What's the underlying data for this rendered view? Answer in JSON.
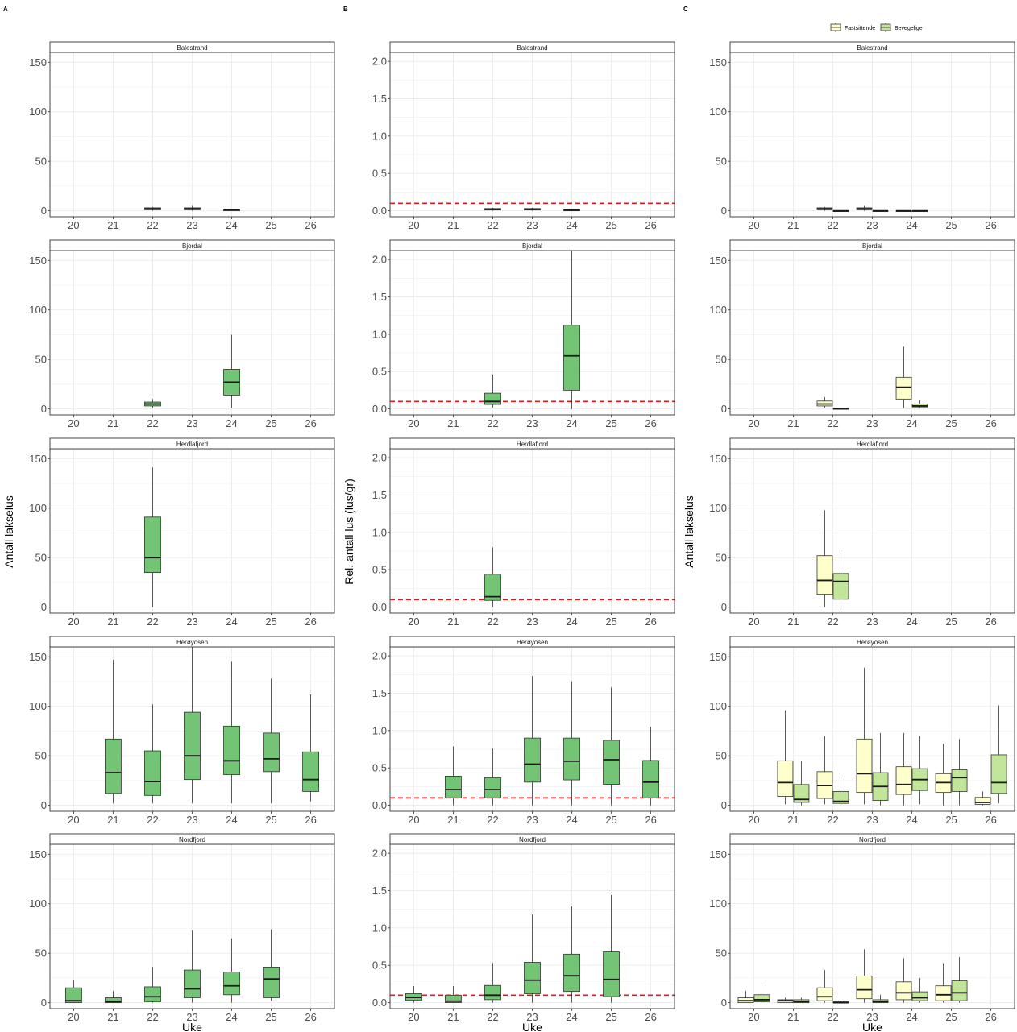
{
  "colors": {
    "green": "#74c476",
    "fastsittende": "#ffffcc",
    "bevegelige": "#c2e699",
    "threshold": "#e31a1c",
    "grid": "#ebebeb",
    "border": "#333333"
  },
  "chart_data": {
    "type": "boxplot",
    "weeks": [
      "20",
      "21",
      "22",
      "23",
      "24",
      "25",
      "26"
    ],
    "sites": [
      "Balestrand",
      "Bjordal",
      "Herdlafjord",
      "Herøyosen",
      "Nordfjord"
    ],
    "xlabel": "Uke",
    "columns": [
      {
        "letter": "A",
        "ylabel": "Antall lakselus",
        "ylim": [
          -6,
          160
        ],
        "yticks": [
          0,
          50,
          100,
          150
        ],
        "threshold": null,
        "series": [
          {
            "name": "",
            "color": "green"
          }
        ],
        "panels": {
          "Balestrand": {
            "22": [
              [
                0,
                1,
                2,
                3,
                4
              ]
            ],
            "23": [
              [
                0,
                1,
                2,
                3,
                5
              ]
            ],
            "24": [
              [
                0,
                0,
                1,
                1,
                1
              ]
            ]
          },
          "Bjordal": {
            "22": [
              [
                1,
                3,
                5,
                7,
                10
              ]
            ],
            "24": [
              [
                1,
                14,
                27,
                40,
                75
              ]
            ]
          },
          "Herdlafjord": {
            "22": [
              [
                0,
                35,
                50,
                91,
                141
              ]
            ]
          },
          "Herøyosen": {
            "21": [
              [
                2,
                12,
                33,
                67,
                147
              ]
            ],
            "22": [
              [
                2,
                10,
                24,
                55,
                102
              ]
            ],
            "23": [
              [
                2,
                26,
                50,
                94,
                160
              ]
            ],
            "24": [
              [
                2,
                31,
                45,
                80,
                145
              ]
            ],
            "25": [
              [
                2,
                34,
                47,
                73,
                128
              ]
            ],
            "26": [
              [
                4,
                14,
                26,
                54,
                112
              ]
            ]
          },
          "Nordfjord": {
            "20": [
              [
                0,
                0,
                2,
                15,
                23
              ]
            ],
            "21": [
              [
                0,
                0,
                1,
                5,
                12
              ]
            ],
            "22": [
              [
                0,
                1,
                6,
                16,
                36
              ]
            ],
            "23": [
              [
                0,
                5,
                14,
                33,
                73
              ]
            ],
            "24": [
              [
                0,
                8,
                17,
                31,
                65
              ]
            ],
            "25": [
              [
                2,
                5,
                24,
                36,
                74
              ]
            ]
          }
        }
      },
      {
        "letter": "B",
        "ylabel": "Rel. antall lus (lus/gr)",
        "ylim": [
          -0.08,
          2.12
        ],
        "yticks": [
          0.0,
          0.5,
          1.0,
          1.5,
          2.0
        ],
        "ytick_labels": [
          "0.0",
          "0.5",
          "1.0",
          "1.5",
          "2.0"
        ],
        "threshold": 0.1,
        "series": [
          {
            "name": "",
            "color": "green"
          }
        ],
        "panels": {
          "Balestrand": {
            "22": [
              [
                0,
                0.01,
                0.02,
                0.03,
                0.04
              ]
            ],
            "23": [
              [
                0,
                0.01,
                0.02,
                0.03,
                0.04
              ]
            ],
            "24": [
              [
                0,
                0.005,
                0.01,
                0.01,
                0.01
              ]
            ]
          },
          "Bjordal": {
            "22": [
              [
                0.02,
                0.06,
                0.1,
                0.21,
                0.46
              ]
            ],
            "24": [
              [
                0,
                0.25,
                0.71,
                1.12,
                2.12
              ]
            ]
          },
          "Herdlafjord": {
            "22": [
              [
                0,
                0.09,
                0.14,
                0.44,
                0.8
              ]
            ]
          },
          "Herøyosen": {
            "21": [
              [
                0,
                0.1,
                0.21,
                0.39,
                0.79
              ]
            ],
            "22": [
              [
                0,
                0.1,
                0.21,
                0.37,
                0.76
              ]
            ],
            "23": [
              [
                0,
                0.31,
                0.55,
                0.9,
                1.73
              ]
            ],
            "24": [
              [
                0,
                0.34,
                0.59,
                0.9,
                1.66
              ]
            ],
            "25": [
              [
                0,
                0.28,
                0.61,
                0.87,
                1.58
              ]
            ],
            "26": [
              [
                0,
                0.1,
                0.31,
                0.6,
                1.05
              ]
            ]
          },
          "Nordfjord": {
            "20": [
              [
                0,
                0.03,
                0.07,
                0.12,
                0.22
              ]
            ],
            "21": [
              [
                0,
                0,
                0.02,
                0.1,
                0.22
              ]
            ],
            "22": [
              [
                0,
                0.04,
                0.1,
                0.23,
                0.53
              ]
            ],
            "23": [
              [
                0,
                0.12,
                0.3,
                0.54,
                1.18
              ]
            ],
            "24": [
              [
                0,
                0.15,
                0.36,
                0.65,
                1.29
              ]
            ],
            "25": [
              [
                0,
                0.08,
                0.31,
                0.68,
                1.44
              ]
            ]
          }
        }
      },
      {
        "letter": "C",
        "ylabel": "Antall lakselus",
        "ylim": [
          -6,
          160
        ],
        "yticks": [
          0,
          50,
          100,
          150
        ],
        "threshold": null,
        "legend": [
          "Fastsittende",
          "Bevegelige"
        ],
        "series": [
          {
            "name": "Fastsittende",
            "color": "fastsittende"
          },
          {
            "name": "Bevegelige",
            "color": "bevegelige"
          }
        ],
        "panels": {
          "Balestrand": {
            "22": [
              [
                0,
                1,
                2,
                3,
                4
              ],
              [
                0,
                0,
                0,
                0,
                0
              ]
            ],
            "23": [
              [
                0,
                1,
                2,
                3,
                5
              ],
              [
                0,
                0,
                0,
                0,
                0
              ]
            ],
            "24": [
              [
                0,
                0,
                0,
                0,
                0
              ],
              [
                0,
                0,
                0,
                0,
                0
              ]
            ]
          },
          "Bjordal": {
            "22": [
              [
                1,
                3,
                5,
                8,
                12
              ],
              [
                0,
                0,
                0,
                1,
                1
              ]
            ],
            "24": [
              [
                1,
                10,
                22,
                32,
                63
              ],
              [
                1,
                2,
                3,
                5,
                9
              ]
            ]
          },
          "Herdlafjord": {
            "22": [
              [
                0,
                13,
                27,
                52,
                98
              ],
              [
                0,
                8,
                26,
                34,
                58
              ]
            ]
          },
          "Herøyosen": {
            "21": [
              [
                1,
                9,
                23,
                45,
                96
              ],
              [
                0,
                3,
                6,
                21,
                45
              ]
            ],
            "22": [
              [
                1,
                7,
                20,
                34,
                70
              ],
              [
                0,
                2,
                4,
                14,
                31
              ]
            ],
            "23": [
              [
                1,
                13,
                32,
                67,
                139
              ],
              [
                0,
                5,
                19,
                33,
                73
              ]
            ],
            "24": [
              [
                0,
                11,
                21,
                39,
                73
              ],
              [
                1,
                15,
                26,
                37,
                70
              ]
            ],
            "25": [
              [
                0,
                13,
                23,
                32,
                62
              ],
              [
                0,
                14,
                28,
                36,
                67
              ]
            ],
            "26": [
              [
                0,
                1,
                3,
                8,
                14
              ],
              [
                2,
                12,
                23,
                51,
                101
              ]
            ]
          },
          "Nordfjord": {
            "20": [
              [
                0,
                0,
                2,
                5,
                12
              ],
              [
                0,
                1,
                3,
                8,
                18
              ]
            ],
            "21": [
              [
                0,
                0,
                2,
                3,
                5
              ],
              [
                0,
                0,
                1,
                3,
                5
              ]
            ],
            "22": [
              [
                0,
                2,
                6,
                15,
                33
              ],
              [
                0,
                0,
                0,
                1,
                2
              ]
            ],
            "23": [
              [
                0,
                4,
                13,
                27,
                54
              ],
              [
                0,
                0,
                1,
                3,
                8
              ]
            ],
            "24": [
              [
                0,
                3,
                10,
                21,
                45
              ],
              [
                0,
                2,
                5,
                11,
                25
              ]
            ],
            "25": [
              [
                0,
                2,
                8,
                17,
                40
              ],
              [
                0,
                2,
                10,
                22,
                46
              ]
            ]
          }
        }
      }
    ]
  }
}
